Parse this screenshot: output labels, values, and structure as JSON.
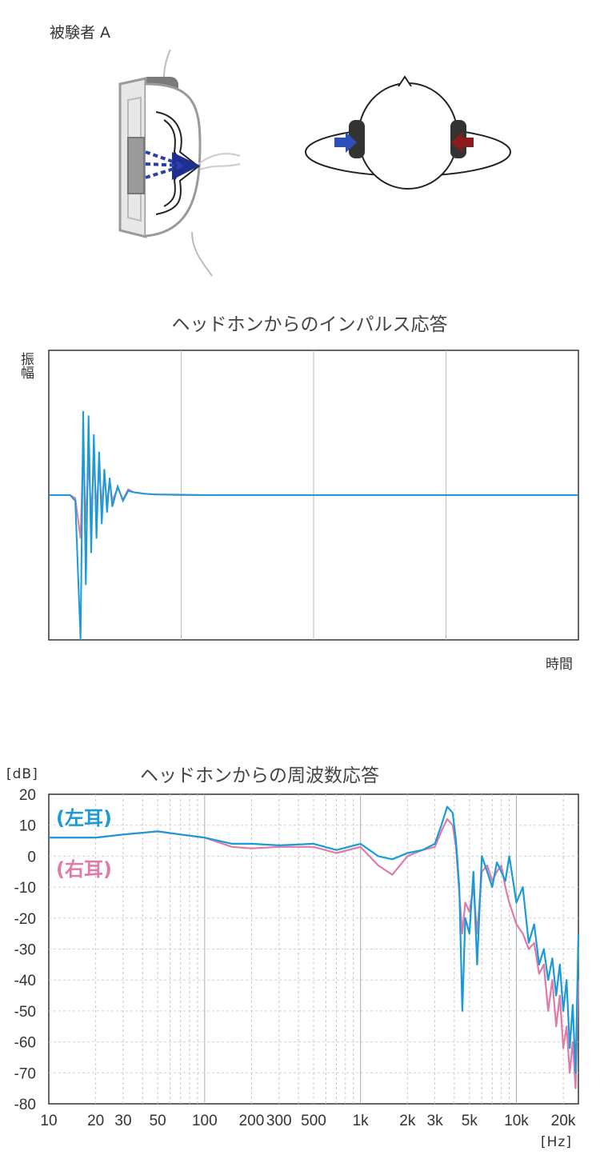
{
  "subject_label": "被験者 A",
  "colors": {
    "left_ear": "#1a9ad6",
    "right_ear": "#e07aa8",
    "arrow_left": "#2f4fb8",
    "arrow_right": "#8b1a1a",
    "grid": "#bbbbbb",
    "frame": "#333333"
  },
  "chart_data": [
    {
      "type": "line",
      "title": "ヘッドホンからのインパルス応答",
      "ylabel": "振幅",
      "xlabel": "時間",
      "grid": true,
      "x": [
        0,
        0.02,
        0.04,
        0.05,
        0.06,
        0.065,
        0.07,
        0.075,
        0.08,
        0.085,
        0.09,
        0.095,
        0.1,
        0.105,
        0.11,
        0.115,
        0.12,
        0.13,
        0.14,
        0.15,
        0.16,
        0.18,
        0.2,
        0.25,
        0.3,
        0.4,
        0.5,
        0.6,
        0.7,
        0.8,
        0.9,
        1.0
      ],
      "series": [
        {
          "name": "右耳",
          "values": [
            0,
            0,
            0,
            -0.02,
            -0.3,
            0.35,
            -0.2,
            0.25,
            -0.15,
            0.25,
            -0.1,
            0.2,
            -0.08,
            0.15,
            -0.06,
            0.1,
            -0.04,
            0.05,
            -0.03,
            0.04,
            0.02,
            0.01,
            0.005,
            0,
            0,
            0,
            0,
            0,
            0,
            0,
            0,
            0
          ]
        },
        {
          "name": "左耳",
          "values": [
            0,
            0,
            0,
            -0.04,
            -1.0,
            0.58,
            -0.62,
            0.55,
            -0.4,
            0.42,
            -0.3,
            0.3,
            -0.2,
            0.18,
            -0.12,
            0.12,
            -0.08,
            0.06,
            -0.04,
            0.03,
            0.02,
            0.01,
            0.005,
            0.003,
            0,
            0,
            0,
            0,
            0,
            0,
            0,
            0
          ]
        }
      ],
      "ylim": [
        -1,
        1
      ],
      "xlim": [
        0,
        1
      ]
    },
    {
      "type": "line",
      "title": "ヘッドホンからの周波数応答",
      "y_unit": "[dB]",
      "x_unit": "[Hz]",
      "x_scale": "log",
      "xlim": [
        10,
        25000
      ],
      "ylim": [
        -80,
        20
      ],
      "grid": true,
      "x_ticks": [
        {
          "v": 10,
          "label": "10"
        },
        {
          "v": 20,
          "label": "20"
        },
        {
          "v": 30,
          "label": "30"
        },
        {
          "v": 50,
          "label": "50"
        },
        {
          "v": 100,
          "label": "100"
        },
        {
          "v": 200,
          "label": "200"
        },
        {
          "v": 300,
          "label": "300"
        },
        {
          "v": 500,
          "label": "500"
        },
        {
          "v": 1000,
          "label": "1k"
        },
        {
          "v": 2000,
          "label": "2k"
        },
        {
          "v": 3000,
          "label": "3k"
        },
        {
          "v": 5000,
          "label": "5k"
        },
        {
          "v": 10000,
          "label": "10k"
        },
        {
          "v": 20000,
          "label": "20k"
        }
      ],
      "y_ticks": [
        20,
        10,
        0,
        -10,
        -20,
        -30,
        -40,
        -50,
        -60,
        -70,
        -80
      ],
      "legend_placement": "top-left",
      "series": [
        {
          "name": "(左耳)",
          "x": [
            10,
            20,
            30,
            50,
            70,
            100,
            150,
            200,
            300,
            500,
            700,
            1000,
            1300,
            1600,
            2000,
            2500,
            3000,
            3300,
            3600,
            3900,
            4100,
            4300,
            4500,
            4700,
            5000,
            5300,
            5600,
            6000,
            6500,
            7000,
            7500,
            8000,
            8500,
            9000,
            10000,
            11000,
            12000,
            13000,
            14000,
            15000,
            16000,
            17000,
            18000,
            19000,
            20000,
            21000,
            22000,
            23000,
            24000,
            25000
          ],
          "y": [
            6,
            6,
            7,
            8,
            7,
            6,
            4,
            4,
            3.5,
            4,
            2,
            4,
            0,
            -1,
            1,
            2,
            4,
            10,
            16,
            14,
            5,
            -10,
            -50,
            -20,
            -25,
            -5,
            -35,
            0,
            -5,
            -10,
            -2,
            -5,
            -8,
            0,
            -15,
            -10,
            -28,
            -22,
            -35,
            -30,
            -40,
            -33,
            -45,
            -35,
            -50,
            -40,
            -62,
            -48,
            -70,
            -25
          ]
        },
        {
          "name": "(右耳)",
          "x": [
            10,
            20,
            30,
            50,
            70,
            100,
            150,
            200,
            300,
            500,
            700,
            1000,
            1300,
            1600,
            2000,
            2500,
            3000,
            3300,
            3600,
            3900,
            4100,
            4300,
            4500,
            4700,
            5000,
            5300,
            5600,
            6000,
            6500,
            7000,
            7500,
            8000,
            8500,
            9000,
            10000,
            11000,
            12000,
            13000,
            14000,
            15000,
            16000,
            17000,
            18000,
            19000,
            20000,
            21000,
            22000,
            23000,
            24000,
            25000
          ],
          "y": [
            6,
            6,
            7,
            8,
            7,
            6,
            3,
            2.5,
            3,
            3,
            1,
            3,
            -3,
            -6,
            0,
            2,
            3,
            8,
            12,
            10,
            3,
            -12,
            -25,
            -15,
            -18,
            -10,
            -25,
            -5,
            -3,
            -8,
            -5,
            -3,
            -10,
            -15,
            -22,
            -25,
            -30,
            -28,
            -38,
            -35,
            -50,
            -40,
            -55,
            -45,
            -62,
            -55,
            -70,
            -60,
            -75,
            -40
          ]
        }
      ]
    }
  ]
}
